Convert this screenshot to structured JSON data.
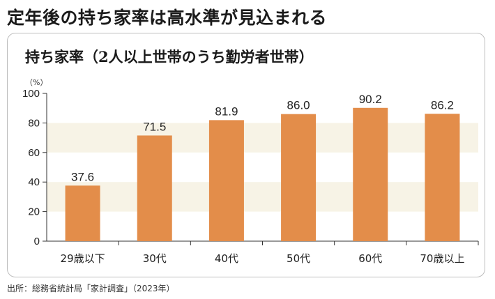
{
  "headline": "定年後の持ち家率は高水準が見込まれる",
  "source": "出所：総務省統計局「家計調査」（2023年）",
  "colors": {
    "bar": "#e38d4a",
    "band": "#f7f3e6",
    "axis": "#333333"
  },
  "chart_data": {
    "type": "bar",
    "title": "持ち家率（2人以上世帯のうち勤労者世帯）",
    "unit_label": "（%）",
    "categories": [
      "29歳以下",
      "30代",
      "40代",
      "50代",
      "60代",
      "70歳以上"
    ],
    "values": [
      37.6,
      71.5,
      81.9,
      86.0,
      90.2,
      86.2
    ],
    "value_labels": [
      "37.6",
      "71.5",
      "81.9",
      "86.0",
      "90.2",
      "86.2"
    ],
    "ylim": [
      0,
      100
    ],
    "yticks": [
      "0",
      "20",
      "40",
      "60",
      "80",
      "100"
    ],
    "xlabel": "",
    "ylabel": "",
    "grid": false,
    "alternating_bands": true
  }
}
